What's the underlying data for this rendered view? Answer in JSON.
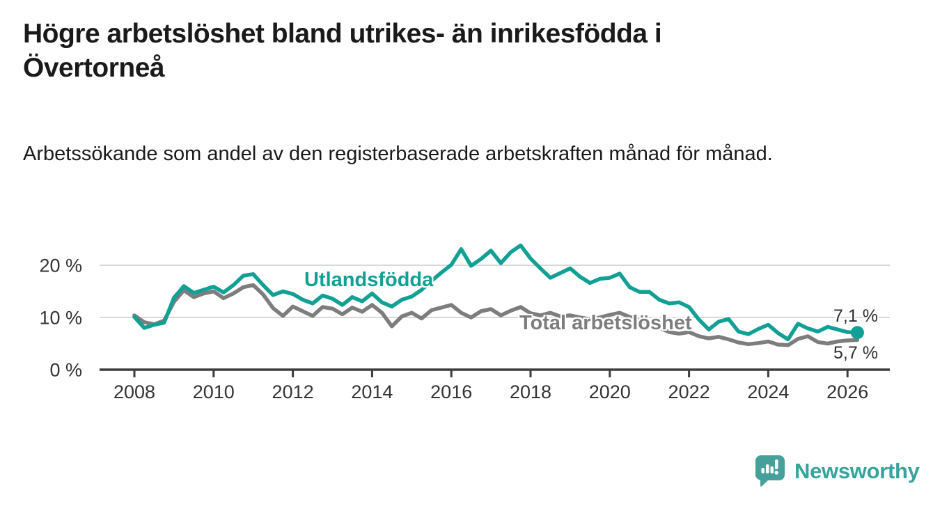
{
  "header": {
    "title": "Högre arbetslöshet bland utrikes- än inrikesfödda i Övertorneå",
    "subtitle": "Arbetssökande som andel av den registerbaserade arbetskraften månad för månad."
  },
  "footer": {
    "brand": "Newsworthy",
    "brand_color": "#38a39c",
    "logo_icon": "speech-bubble-bar-chart",
    "logo_bubble_color": "#45a09a"
  },
  "chart_data": {
    "type": "line",
    "title": "",
    "xlabel": "",
    "ylabel": "",
    "grid": "horizontal",
    "legend": "inline-labels",
    "xlim": [
      2007.15,
      2027.05
    ],
    "ylim": [
      0,
      26
    ],
    "x_ticks": [
      "2008",
      "2010",
      "2012",
      "2014",
      "2016",
      "2018",
      "2020",
      "2022",
      "2024",
      "2026"
    ],
    "x_tick_years": [
      2008,
      2010,
      2012,
      2014,
      2016,
      2018,
      2020,
      2022,
      2024,
      2026
    ],
    "y_ticks": [
      {
        "value": 0,
        "label": "0 %"
      },
      {
        "value": 10,
        "label": "10 %"
      },
      {
        "value": 20,
        "label": "20 %"
      }
    ],
    "x_start": 2008.0,
    "x_step": 0.25,
    "unit": "%",
    "series": [
      {
        "name": "Utlandsfödda",
        "color": "#12a094",
        "end_label": "7,1 %",
        "end_value": 7.1,
        "end_dot": true,
        "values": [
          10.1,
          8.0,
          8.6,
          9.0,
          13.8,
          16.0,
          14.7,
          15.3,
          15.9,
          14.8,
          16.2,
          18.0,
          18.3,
          16.2,
          14.3,
          15.0,
          14.5,
          13.4,
          12.7,
          14.2,
          13.6,
          12.4,
          13.9,
          13.1,
          14.6,
          12.9,
          12.1,
          13.4,
          14.0,
          15.3,
          17.0,
          18.6,
          20.1,
          23.1,
          19.9,
          21.2,
          22.8,
          20.4,
          22.5,
          23.8,
          21.3,
          19.4,
          17.6,
          18.5,
          19.4,
          17.8,
          16.6,
          17.4,
          17.6,
          18.4,
          15.8,
          14.9,
          14.9,
          13.4,
          12.7,
          12.9,
          12.0,
          9.6,
          7.7,
          9.2,
          9.7,
          7.3,
          6.8,
          7.8,
          8.6,
          7.0,
          5.8,
          8.8,
          7.9,
          7.3,
          8.2,
          7.7,
          7.2,
          7.1
        ]
      },
      {
        "name": "Total arbetslöshet",
        "color": "#7d7d7d",
        "end_label": "5,7 %",
        "end_value": 5.7,
        "end_dot": false,
        "values": [
          10.4,
          9.1,
          8.7,
          9.4,
          13.0,
          15.2,
          13.9,
          14.6,
          15.0,
          13.7,
          14.6,
          15.8,
          16.2,
          14.4,
          11.8,
          10.3,
          12.1,
          11.2,
          10.3,
          12.0,
          11.7,
          10.6,
          11.9,
          11.1,
          12.4,
          10.9,
          8.3,
          10.2,
          10.9,
          9.8,
          11.4,
          11.9,
          12.4,
          10.9,
          10.0,
          11.2,
          11.6,
          10.4,
          11.3,
          12.0,
          10.8,
          10.4,
          10.9,
          10.2,
          10.4,
          10.0,
          9.7,
          10.0,
          10.5,
          10.9,
          10.1,
          9.5,
          9.0,
          8.0,
          7.2,
          6.9,
          7.2,
          6.4,
          6.0,
          6.3,
          5.8,
          5.2,
          4.9,
          5.1,
          5.4,
          4.8,
          4.7,
          5.9,
          6.4,
          5.3,
          5.0,
          5.4,
          5.6,
          5.7
        ]
      }
    ]
  }
}
